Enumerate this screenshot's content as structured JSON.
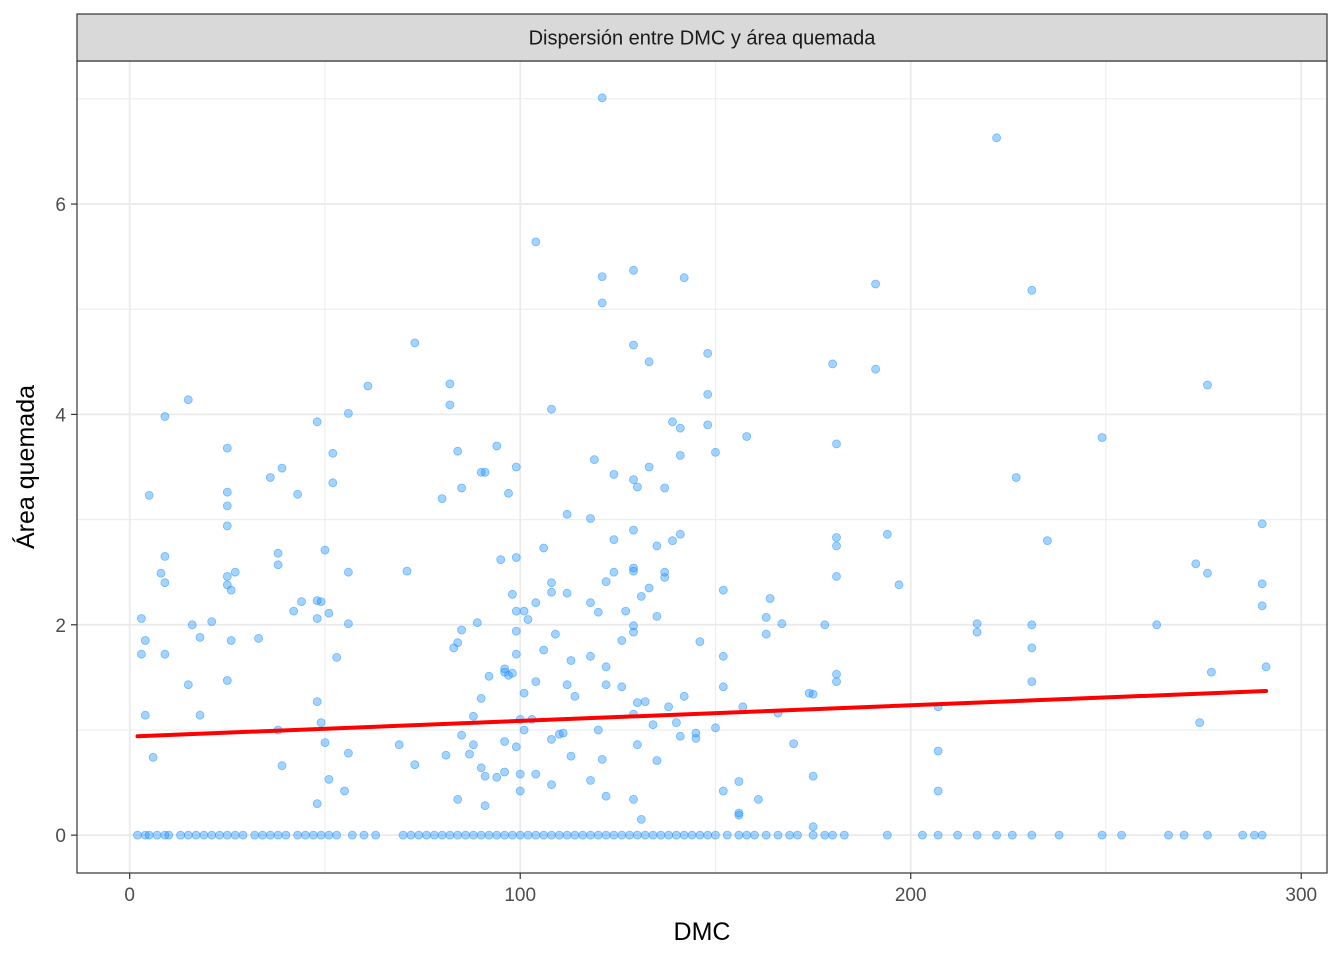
{
  "chart_data": {
    "type": "scatter",
    "title": "Dispersión entre DMC y área quemada",
    "xlabel": "DMC",
    "ylabel": "Área quemada",
    "xlim": [
      -13.5,
      306.6
    ],
    "ylim": [
      -0.36,
      7.36
    ],
    "x_ticks": [
      0,
      100,
      200,
      300
    ],
    "y_ticks": [
      0,
      2,
      4,
      6
    ],
    "x_tick_labels": [
      "0",
      "100",
      "200",
      "300"
    ],
    "y_tick_labels": [
      "0",
      "2",
      "4",
      "6"
    ],
    "grid": true,
    "point_color": "#1E90FF",
    "trend_color": "#FF0000",
    "trend_line": {
      "x": [
        2,
        291
      ],
      "y": [
        0.94,
        1.37
      ]
    },
    "points": [
      [
        121,
        7.01
      ],
      [
        222,
        6.63
      ],
      [
        104,
        5.64
      ],
      [
        121,
        5.31
      ],
      [
        129,
        5.37
      ],
      [
        142,
        5.3
      ],
      [
        191,
        5.24
      ],
      [
        231,
        5.18
      ],
      [
        121,
        5.06
      ],
      [
        73,
        4.68
      ],
      [
        129,
        4.66
      ],
      [
        133,
        4.5
      ],
      [
        148,
        4.58
      ],
      [
        180,
        4.48
      ],
      [
        191,
        4.43
      ],
      [
        61,
        4.27
      ],
      [
        82,
        4.29
      ],
      [
        276,
        4.28
      ],
      [
        15,
        4.14
      ],
      [
        82,
        4.09
      ],
      [
        148,
        4.19
      ],
      [
        56,
        4.01
      ],
      [
        108,
        4.05
      ],
      [
        9,
        3.98
      ],
      [
        48,
        3.93
      ],
      [
        139,
        3.93
      ],
      [
        148,
        3.9
      ],
      [
        141,
        3.87
      ],
      [
        158,
        3.79
      ],
      [
        249,
        3.78
      ],
      [
        181,
        3.72
      ],
      [
        94,
        3.7
      ],
      [
        25,
        3.68
      ],
      [
        52,
        3.63
      ],
      [
        84,
        3.65
      ],
      [
        141,
        3.61
      ],
      [
        150,
        3.64
      ],
      [
        99,
        3.5
      ],
      [
        119,
        3.57
      ],
      [
        133,
        3.5
      ],
      [
        39,
        3.49
      ],
      [
        36,
        3.4
      ],
      [
        90,
        3.45
      ],
      [
        91,
        3.45
      ],
      [
        124,
        3.43
      ],
      [
        227,
        3.4
      ],
      [
        5,
        3.23
      ],
      [
        25,
        3.26
      ],
      [
        43,
        3.24
      ],
      [
        52,
        3.35
      ],
      [
        80,
        3.2
      ],
      [
        85,
        3.3
      ],
      [
        97,
        3.25
      ],
      [
        129,
        3.38
      ],
      [
        130,
        3.31
      ],
      [
        137,
        3.3
      ],
      [
        25,
        3.13
      ],
      [
        112,
        3.05
      ],
      [
        118,
        3.01
      ],
      [
        25,
        2.94
      ],
      [
        129,
        2.9
      ],
      [
        141,
        2.86
      ],
      [
        181,
        2.83
      ],
      [
        194,
        2.86
      ],
      [
        290,
        2.96
      ],
      [
        124,
        2.81
      ],
      [
        139,
        2.8
      ],
      [
        181,
        2.75
      ],
      [
        135,
        2.75
      ],
      [
        235,
        2.8
      ],
      [
        9,
        2.65
      ],
      [
        38,
        2.68
      ],
      [
        50,
        2.71
      ],
      [
        95,
        2.62
      ],
      [
        99,
        2.64
      ],
      [
        106,
        2.73
      ],
      [
        8,
        2.49
      ],
      [
        9,
        2.4
      ],
      [
        25,
        2.46
      ],
      [
        25,
        2.38
      ],
      [
        26,
        2.33
      ],
      [
        27,
        2.5
      ],
      [
        38,
        2.57
      ],
      [
        56,
        2.5
      ],
      [
        71,
        2.51
      ],
      [
        108,
        2.4
      ],
      [
        112,
        2.3
      ],
      [
        122,
        2.41
      ],
      [
        124,
        2.5
      ],
      [
        129,
        2.54
      ],
      [
        129,
        2.51
      ],
      [
        133,
        2.35
      ],
      [
        137,
        2.5
      ],
      [
        137,
        2.45
      ],
      [
        152,
        2.33
      ],
      [
        181,
        2.46
      ],
      [
        197,
        2.38
      ],
      [
        273,
        2.58
      ],
      [
        276,
        2.49
      ],
      [
        290,
        2.39
      ],
      [
        290,
        2.18
      ],
      [
        3,
        2.06
      ],
      [
        16,
        2.0
      ],
      [
        21,
        2.03
      ],
      [
        42,
        2.13
      ],
      [
        44,
        2.22
      ],
      [
        48,
        2.23
      ],
      [
        49,
        2.22
      ],
      [
        51,
        2.11
      ],
      [
        56,
        2.01
      ],
      [
        89,
        2.02
      ],
      [
        98,
        2.29
      ],
      [
        99,
        2.13
      ],
      [
        101,
        2.13
      ],
      [
        102,
        2.05
      ],
      [
        104,
        2.21
      ],
      [
        108,
        2.31
      ],
      [
        118,
        2.21
      ],
      [
        120,
        2.12
      ],
      [
        127,
        2.13
      ],
      [
        129,
        1.99
      ],
      [
        131,
        2.27
      ],
      [
        135,
        2.08
      ],
      [
        163,
        2.07
      ],
      [
        164,
        2.25
      ],
      [
        167,
        2.01
      ],
      [
        178,
        2.0
      ],
      [
        217,
        2.01
      ],
      [
        217,
        1.93
      ],
      [
        231,
        2.0
      ],
      [
        263,
        2.0
      ],
      [
        3,
        1.72
      ],
      [
        4,
        1.85
      ],
      [
        9,
        1.72
      ],
      [
        18,
        1.88
      ],
      [
        26,
        1.85
      ],
      [
        33,
        1.87
      ],
      [
        48,
        2.06
      ],
      [
        53,
        1.69
      ],
      [
        83,
        1.78
      ],
      [
        84,
        1.83
      ],
      [
        85,
        1.95
      ],
      [
        96,
        1.58
      ],
      [
        97,
        1.52
      ],
      [
        99,
        1.72
      ],
      [
        99,
        1.94
      ],
      [
        106,
        1.76
      ],
      [
        109,
        1.91
      ],
      [
        113,
        1.66
      ],
      [
        118,
        1.7
      ],
      [
        122,
        1.6
      ],
      [
        126,
        1.85
      ],
      [
        129,
        1.93
      ],
      [
        146,
        1.84
      ],
      [
        152,
        1.7
      ],
      [
        163,
        1.91
      ],
      [
        231,
        1.78
      ],
      [
        277,
        1.55
      ],
      [
        291,
        1.6
      ],
      [
        15,
        1.43
      ],
      [
        25,
        1.47
      ],
      [
        48,
        1.27
      ],
      [
        90,
        1.3
      ],
      [
        92,
        1.51
      ],
      [
        96,
        1.55
      ],
      [
        98,
        1.54
      ],
      [
        101,
        1.35
      ],
      [
        104,
        1.46
      ],
      [
        112,
        1.43
      ],
      [
        114,
        1.32
      ],
      [
        122,
        1.43
      ],
      [
        126,
        1.41
      ],
      [
        130,
        1.26
      ],
      [
        132,
        1.27
      ],
      [
        138,
        1.22
      ],
      [
        142,
        1.32
      ],
      [
        152,
        1.41
      ],
      [
        174,
        1.35
      ],
      [
        175,
        1.34
      ],
      [
        181,
        1.53
      ],
      [
        181,
        1.46
      ],
      [
        207,
        1.22
      ],
      [
        231,
        1.46
      ],
      [
        4,
        1.14
      ],
      [
        18,
        1.14
      ],
      [
        49,
        1.07
      ],
      [
        88,
        1.13
      ],
      [
        100,
        1.1
      ],
      [
        101,
        1.0
      ],
      [
        103,
        1.1
      ],
      [
        111,
        0.97
      ],
      [
        120,
        1.0
      ],
      [
        129,
        1.15
      ],
      [
        134,
        1.05
      ],
      [
        140,
        1.07
      ],
      [
        150,
        1.02
      ],
      [
        157,
        1.22
      ],
      [
        166,
        1.16
      ],
      [
        6,
        0.74
      ],
      [
        38,
        1.0
      ],
      [
        39,
        0.66
      ],
      [
        50,
        0.88
      ],
      [
        51,
        0.53
      ],
      [
        56,
        0.78
      ],
      [
        69,
        0.86
      ],
      [
        73,
        0.67
      ],
      [
        81,
        0.76
      ],
      [
        85,
        0.95
      ],
      [
        87,
        0.77
      ],
      [
        88,
        0.86
      ],
      [
        90,
        0.64
      ],
      [
        91,
        0.56
      ],
      [
        94,
        0.55
      ],
      [
        96,
        0.6
      ],
      [
        96,
        0.89
      ],
      [
        99,
        0.84
      ],
      [
        100,
        0.58
      ],
      [
        104,
        0.58
      ],
      [
        108,
        0.91
      ],
      [
        108,
        0.48
      ],
      [
        110,
        0.96
      ],
      [
        113,
        0.75
      ],
      [
        118,
        0.52
      ],
      [
        121,
        0.72
      ],
      [
        130,
        0.86
      ],
      [
        135,
        0.71
      ],
      [
        141,
        0.94
      ],
      [
        145,
        0.97
      ],
      [
        145,
        0.92
      ],
      [
        152,
        0.42
      ],
      [
        156,
        0.51
      ],
      [
        161,
        0.34
      ],
      [
        170,
        0.87
      ],
      [
        175,
        0.56
      ],
      [
        207,
        0.8
      ],
      [
        207,
        0.42
      ],
      [
        274,
        1.07
      ],
      [
        48,
        0.3
      ],
      [
        55,
        0.42
      ],
      [
        84,
        0.34
      ],
      [
        91,
        0.28
      ],
      [
        100,
        0.42
      ],
      [
        122,
        0.37
      ],
      [
        129,
        0.34
      ],
      [
        131,
        0.15
      ],
      [
        156,
        0.21
      ],
      [
        156,
        0.19
      ],
      [
        175,
        0.08
      ],
      [
        2,
        0
      ],
      [
        4,
        0
      ],
      [
        5,
        0
      ],
      [
        7,
        0
      ],
      [
        9,
        0
      ],
      [
        10,
        0
      ],
      [
        13,
        0
      ],
      [
        15,
        0
      ],
      [
        17,
        0
      ],
      [
        19,
        0
      ],
      [
        21,
        0
      ],
      [
        23,
        0
      ],
      [
        25,
        0
      ],
      [
        27,
        0
      ],
      [
        29,
        0
      ],
      [
        32,
        0
      ],
      [
        34,
        0
      ],
      [
        36,
        0
      ],
      [
        38,
        0
      ],
      [
        40,
        0
      ],
      [
        43,
        0
      ],
      [
        45,
        0
      ],
      [
        47,
        0
      ],
      [
        49,
        0
      ],
      [
        51,
        0
      ],
      [
        53,
        0
      ],
      [
        57,
        0
      ],
      [
        60,
        0
      ],
      [
        63,
        0
      ],
      [
        70,
        0
      ],
      [
        72,
        0
      ],
      [
        74,
        0
      ],
      [
        76,
        0
      ],
      [
        78,
        0
      ],
      [
        80,
        0
      ],
      [
        82,
        0
      ],
      [
        84,
        0
      ],
      [
        86,
        0
      ],
      [
        88,
        0
      ],
      [
        90,
        0
      ],
      [
        92,
        0
      ],
      [
        94,
        0
      ],
      [
        96,
        0
      ],
      [
        98,
        0
      ],
      [
        100,
        0
      ],
      [
        102,
        0
      ],
      [
        104,
        0
      ],
      [
        106,
        0
      ],
      [
        108,
        0
      ],
      [
        110,
        0
      ],
      [
        112,
        0
      ],
      [
        114,
        0
      ],
      [
        116,
        0
      ],
      [
        118,
        0
      ],
      [
        120,
        0
      ],
      [
        122,
        0
      ],
      [
        124,
        0
      ],
      [
        126,
        0
      ],
      [
        128,
        0
      ],
      [
        130,
        0
      ],
      [
        132,
        0
      ],
      [
        134,
        0
      ],
      [
        136,
        0
      ],
      [
        138,
        0
      ],
      [
        140,
        0
      ],
      [
        142,
        0
      ],
      [
        144,
        0
      ],
      [
        146,
        0
      ],
      [
        148,
        0
      ],
      [
        150,
        0
      ],
      [
        153,
        0
      ],
      [
        156,
        0
      ],
      [
        158,
        0
      ],
      [
        160,
        0
      ],
      [
        163,
        0
      ],
      [
        166,
        0
      ],
      [
        169,
        0
      ],
      [
        171,
        0
      ],
      [
        175,
        0
      ],
      [
        178,
        0
      ],
      [
        180,
        0
      ],
      [
        183,
        0
      ],
      [
        194,
        0
      ],
      [
        203,
        0
      ],
      [
        207,
        0
      ],
      [
        212,
        0
      ],
      [
        217,
        0
      ],
      [
        222,
        0
      ],
      [
        226,
        0
      ],
      [
        231,
        0
      ],
      [
        238,
        0
      ],
      [
        249,
        0
      ],
      [
        254,
        0
      ],
      [
        266,
        0
      ],
      [
        270,
        0
      ],
      [
        276,
        0
      ],
      [
        285,
        0
      ],
      [
        288,
        0
      ],
      [
        290,
        0
      ]
    ]
  }
}
